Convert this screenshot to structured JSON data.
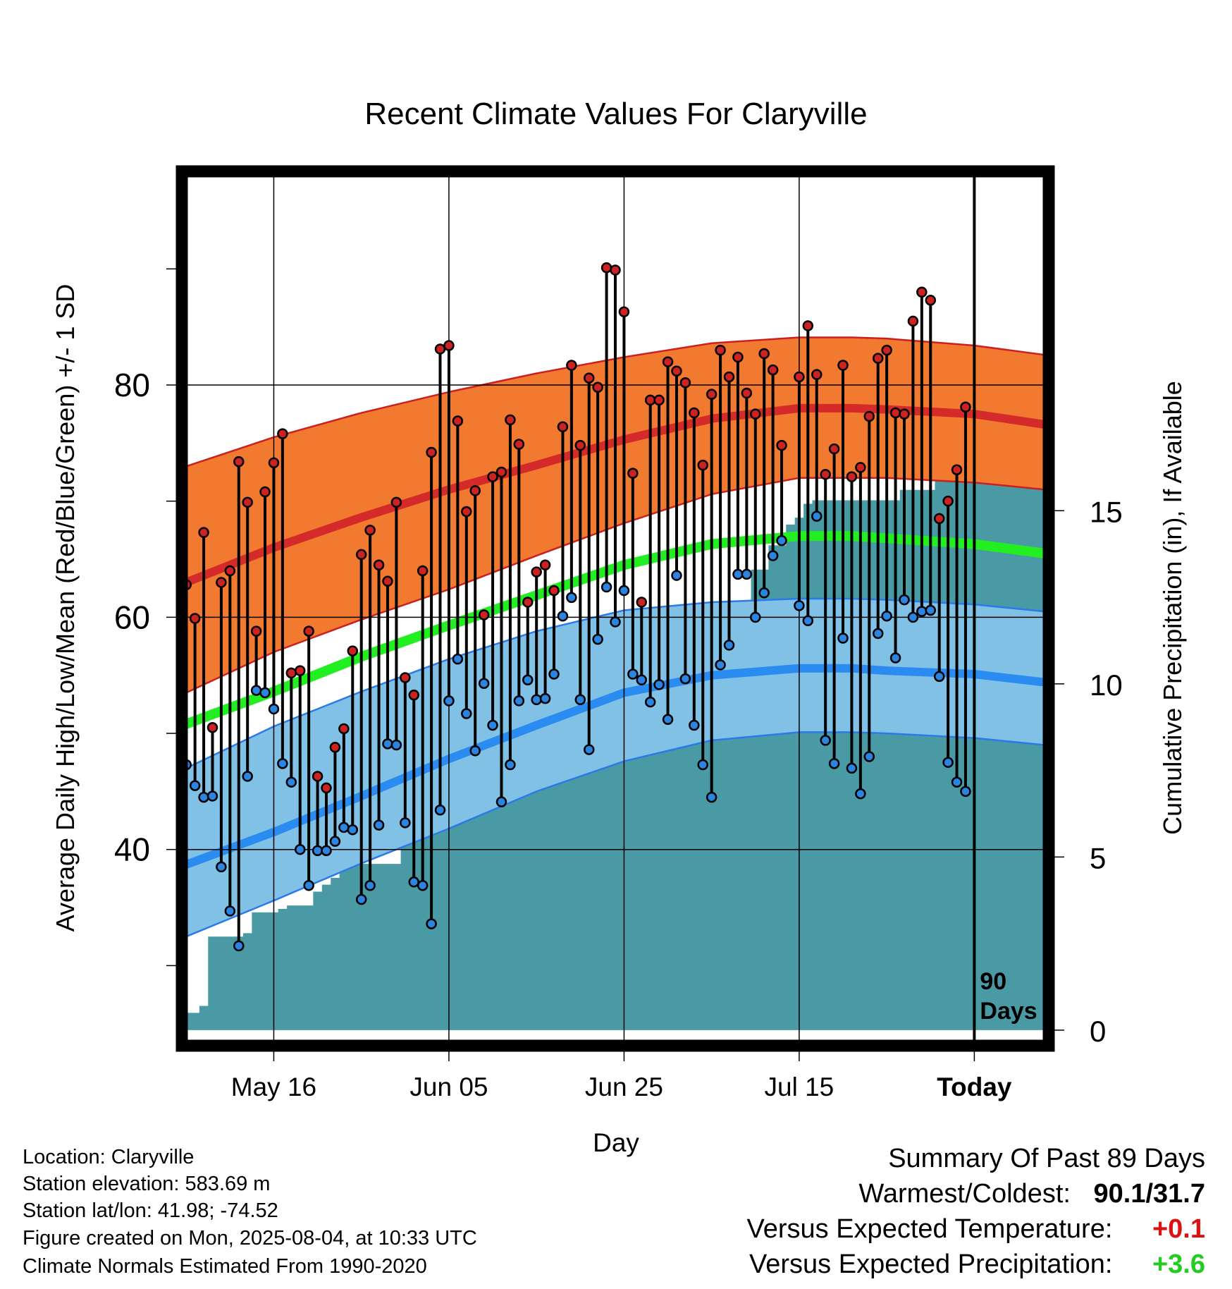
{
  "chart_data": {
    "type": "line",
    "title": "Recent Climate Values For Claryville",
    "xlabel": "Day",
    "ylabel_left": "Average Daily High/Low/Mean (Red/Blue/Green) +/- 1 SD",
    "ylabel_right": "Cumulative Precipitation (in), If Available",
    "x_tick_labels": [
      "May 16",
      "Jun 05",
      "Jun 25",
      "Jul 15",
      "Today"
    ],
    "x_tick_days": [
      10,
      30,
      50,
      70,
      90
    ],
    "y_left_ticks": [
      "40",
      "60",
      "80"
    ],
    "y_left_tick_values": [
      40,
      60,
      80
    ],
    "y_left_range": [
      23.1,
      98.4
    ],
    "y_right_ticks": [
      "0",
      "5",
      "10",
      "15"
    ],
    "y_right_tick_values": [
      0,
      5,
      10,
      15
    ],
    "y_right_range": [
      -0.45,
      24.8
    ],
    "x_range": [
      -0.5,
      98.5
    ],
    "today_day": 90,
    "today_marker": "90\nDays",
    "normals": {
      "days": [
        0,
        10,
        20,
        30,
        40,
        50,
        60,
        70,
        76,
        80,
        90,
        98
      ],
      "high_mean": [
        63.0,
        66.0,
        68.6,
        71.0,
        73.1,
        75.3,
        77.1,
        78.0,
        78.0,
        77.9,
        77.5,
        76.6
      ],
      "high_sd_upper": [
        73.0,
        75.5,
        77.6,
        79.4,
        81.0,
        82.4,
        83.6,
        84.1,
        84.1,
        84.0,
        83.4,
        82.6
      ],
      "high_sd_lower": [
        53.5,
        57.0,
        59.8,
        62.4,
        65.3,
        68.1,
        70.6,
        72.0,
        72.0,
        72.0,
        71.6,
        71.0
      ],
      "mean": [
        50.8,
        53.6,
        56.6,
        59.3,
        61.9,
        64.5,
        66.3,
        67.0,
        67.0,
        66.8,
        66.3,
        65.5
      ],
      "low_mean": [
        38.7,
        41.5,
        44.6,
        47.8,
        50.7,
        53.5,
        55.0,
        55.6,
        55.6,
        55.4,
        55.1,
        54.4
      ],
      "low_sd_upper": [
        47.0,
        50.6,
        53.6,
        56.4,
        58.8,
        60.6,
        61.3,
        61.6,
        61.6,
        61.5,
        61.1,
        60.5
      ],
      "low_sd_lower": [
        32.5,
        35.6,
        38.8,
        41.8,
        45.0,
        47.6,
        49.4,
        50.1,
        50.1,
        50.0,
        49.6,
        49.0
      ]
    },
    "series": [
      {
        "name": "High",
        "color": "#cc2222",
        "values": [
          62.8,
          59.9,
          67.3,
          50.5,
          63.0,
          64.0,
          73.4,
          69.9,
          58.8,
          70.8,
          73.3,
          75.8,
          55.2,
          55.4,
          58.8,
          46.3,
          45.3,
          48.8,
          50.4,
          57.1,
          65.4,
          67.5,
          64.5,
          63.1,
          69.9,
          54.8,
          53.3,
          64.0,
          74.2,
          83.1,
          83.4,
          76.9,
          69.1,
          70.9,
          60.2,
          72.1,
          72.5,
          77.0,
          74.9,
          61.3,
          63.9,
          64.5,
          62.3,
          76.4,
          81.7,
          74.8,
          80.6,
          79.8,
          90.1,
          89.9,
          86.3,
          72.4,
          61.3,
          78.7,
          78.7,
          82.0,
          81.2,
          80.2,
          77.6,
          73.1,
          79.2,
          83.0,
          80.7,
          82.4,
          79.3,
          77.5,
          82.7,
          81.3,
          74.8,
          null,
          80.7,
          85.1,
          80.9,
          72.3,
          74.5,
          81.7,
          72.1,
          72.9,
          77.3,
          82.3,
          83.0,
          77.6,
          77.5,
          85.5,
          88.0,
          87.3,
          68.5,
          70.0,
          72.7,
          78.1
        ]
      },
      {
        "name": "Low",
        "color": "#2a84e0",
        "values": [
          47.3,
          45.5,
          44.5,
          44.6,
          38.5,
          34.7,
          31.7,
          46.3,
          53.7,
          53.5,
          52.1,
          47.4,
          45.8,
          40.0,
          36.9,
          39.9,
          39.9,
          40.7,
          41.9,
          41.7,
          35.7,
          36.9,
          42.1,
          49.1,
          49.0,
          42.3,
          37.2,
          36.9,
          33.6,
          43.4,
          52.8,
          56.4,
          51.7,
          48.5,
          54.3,
          50.7,
          44.1,
          47.3,
          52.8,
          54.6,
          52.9,
          53.0,
          55.1,
          60.1,
          61.7,
          52.9,
          48.6,
          58.1,
          62.6,
          59.6,
          62.3,
          55.1,
          54.6,
          52.7,
          54.2,
          51.2,
          63.6,
          54.7,
          50.7,
          47.3,
          44.5,
          55.9,
          57.6,
          63.7,
          63.7,
          60.0,
          62.1,
          65.3,
          66.6,
          null,
          61.0,
          59.7,
          68.7,
          49.4,
          47.4,
          58.2,
          47.0,
          44.8,
          48.0,
          58.6,
          60.1,
          56.5,
          61.5,
          60.0,
          60.5,
          60.6,
          54.9,
          47.5,
          45.8,
          45.0
        ]
      }
    ],
    "precip": {
      "name": "Cumulative Precipitation",
      "color": "#4a9aa5",
      "values": [
        0.5,
        0.5,
        0.7,
        2.7,
        2.7,
        2.7,
        2.7,
        2.8,
        3.4,
        3.4,
        3.4,
        3.5,
        3.6,
        3.6,
        3.6,
        4.0,
        4.2,
        4.4,
        4.8,
        4.8,
        4.8,
        4.8,
        4.8,
        4.8,
        4.8,
        7.5,
        7.5,
        7.5,
        7.5,
        7.5,
        7.5,
        7.6,
        7.8,
        7.9,
        8.2,
        8.3,
        8.3,
        8.3,
        8.3,
        8.5,
        8.6,
        8.8,
        9.3,
        10.0,
        10.0,
        10.0,
        10.0,
        10.6,
        10.6,
        10.6,
        10.6,
        10.7,
        10.7,
        10.7,
        10.7,
        10.8,
        10.9,
        11.1,
        11.3,
        11.3,
        11.3,
        11.3,
        11.3,
        11.3,
        11.3,
        13.3,
        13.3,
        14.0,
        14.0,
        14.6,
        14.8,
        15.2,
        15.3,
        15.3,
        15.3,
        15.3,
        15.3,
        15.3,
        15.3,
        15.3,
        15.3,
        15.3,
        15.6,
        15.6,
        15.6,
        15.6,
        16.7,
        16.8,
        16.8,
        16.8,
        16.8,
        16.8,
        16.8,
        16.8,
        16.8,
        16.8,
        16.8,
        16.8,
        16.8
      ]
    }
  },
  "colors": {
    "high_band": "#f27930",
    "high_line": "#d42a2a",
    "high_band_edge": "#cc2020",
    "mean_line": "#22ee22",
    "low_band": "#82c1e6",
    "low_line": "#2a8cf0",
    "low_band_edge": "#2a7ae8",
    "high_dot": "#cc2222",
    "low_dot": "#2a84e0",
    "precip": "#4a9aa5",
    "warm_text": "#dd1111",
    "green_text": "#22cc22"
  },
  "info": {
    "location": "Location: Claryville",
    "elevation": "Station elevation: 583.69 m",
    "latlon": "Station lat/lon: 41.98; -74.52",
    "created": "Figure created on Mon, 2025-08-04, at 10:33 UTC",
    "normals": "Climate Normals Estimated From 1990-2020"
  },
  "summary": {
    "heading": "Summary Of Past 89 Days",
    "warmest_coldest_label": "Warmest/Coldest:",
    "warmest_coldest_value": "90.1/31.7",
    "temp_label": "Versus Expected Temperature:",
    "temp_value": "+0.1",
    "precip_label": "Versus Expected Precipitation:",
    "precip_value": "+3.6"
  }
}
